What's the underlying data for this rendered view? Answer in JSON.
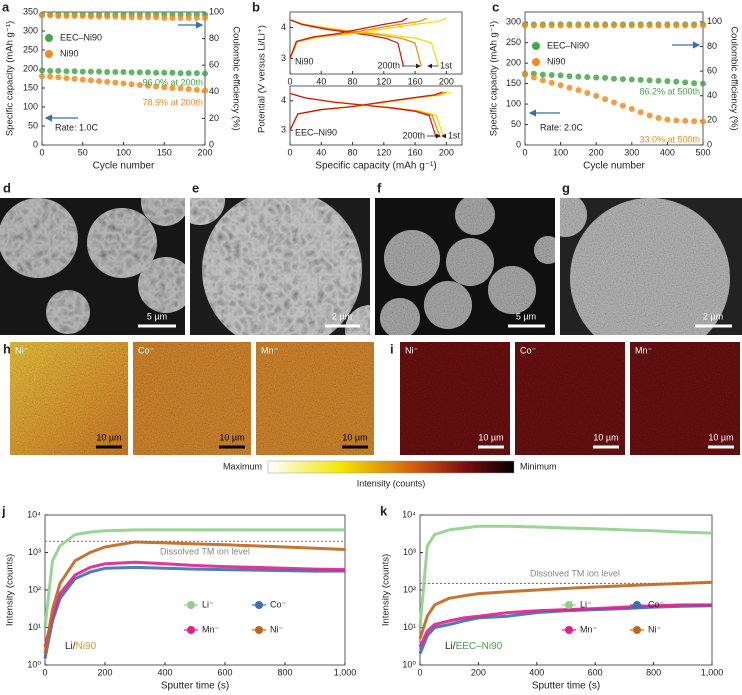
{
  "chart_data": [
    {
      "type": "line",
      "panel": "a",
      "marker": "circle",
      "xlabel": "Cycle number",
      "ylabel": "Specific capacity (mAh g⁻¹)",
      "y2label": "Coulombic efficiency (%)",
      "xlim": [
        0,
        200
      ],
      "xticks": [
        0,
        50,
        100,
        150,
        200
      ],
      "ylim": [
        0,
        350
      ],
      "yticks": [
        0,
        50,
        100,
        150,
        200,
        250,
        300,
        350
      ],
      "y2lim": [
        0,
        100
      ],
      "y2ticks": [
        0,
        20,
        40,
        60,
        80,
        100
      ],
      "x": [
        0,
        10,
        20,
        30,
        40,
        50,
        60,
        70,
        80,
        90,
        100,
        110,
        120,
        130,
        140,
        150,
        160,
        170,
        180,
        190,
        200
      ],
      "series": [
        {
          "name": "EEC–Ni90",
          "color": "#46a64a",
          "values": [
            196,
            195,
            195,
            194,
            194,
            193,
            193,
            193,
            192,
            192,
            192,
            191,
            191,
            191,
            190,
            190,
            190,
            189,
            189,
            189,
            188
          ]
        },
        {
          "name": "Ni90",
          "color": "#f08c1e",
          "values": [
            181,
            180,
            178,
            176,
            174,
            172,
            170,
            168,
            166,
            164,
            162,
            160,
            158,
            156,
            154,
            152,
            150,
            149,
            147,
            145,
            143
          ]
        },
        {
          "color": "#46a64a",
          "axis": "y2",
          "values": [
            98,
            98,
            98,
            98,
            98,
            98,
            98,
            98,
            98,
            98,
            98,
            98,
            98,
            98,
            98,
            98,
            98,
            98,
            98,
            98,
            98
          ]
        },
        {
          "color": "#f08c1e",
          "axis": "y2",
          "values": [
            97.5,
            97.5,
            97,
            97,
            97,
            97,
            96.5,
            96.5,
            96.5,
            96.5,
            96,
            96,
            96,
            96,
            96,
            95.5,
            95.5,
            95.5,
            95.5,
            95.5,
            95.5
          ]
        }
      ],
      "annotations": [
        {
          "text": "96.0% at 200th",
          "color": "#46a64a"
        },
        {
          "text": "78.9% at 200th",
          "color": "#f08c1e"
        },
        {
          "text": "Rate: 1.0C",
          "color": "#222222"
        }
      ]
    },
    {
      "type": "line",
      "panel": "b",
      "label": "Ni90",
      "ylabel": "Potential (V versus Li/Li⁺)",
      "xlim": [
        0,
        220
      ],
      "xticks": [
        0,
        40,
        80,
        120,
        160,
        200
      ],
      "ylim": [
        2.5,
        4.5
      ],
      "yticks": [
        3,
        4
      ],
      "series": [
        {
          "color": "#f0dc00",
          "x": [
            0,
            19,
            57,
            95,
            133,
            162,
            181,
            190
          ],
          "values": [
            4.25,
            4.1,
            3.95,
            3.85,
            3.75,
            3.65,
            3.5,
            2.75
          ]
        },
        {
          "color": "#f08c00",
          "x": [
            0,
            17,
            50,
            84,
            118,
            143,
            160,
            168
          ],
          "values": [
            4.25,
            4.1,
            3.95,
            3.85,
            3.75,
            3.65,
            3.5,
            2.75
          ]
        },
        {
          "color": "#d01010",
          "x": [
            0,
            15,
            44,
            73,
            102,
            123,
            138,
            145
          ],
          "values": [
            4.25,
            4.1,
            3.95,
            3.85,
            3.75,
            3.65,
            3.5,
            2.75
          ]
        },
        {
          "color": "#f0dc00",
          "x": [
            0,
            10,
            40,
            80,
            120,
            160,
            190,
            200
          ],
          "values": [
            3.0,
            3.55,
            3.7,
            3.8,
            3.95,
            4.1,
            4.2,
            4.3
          ]
        },
        {
          "color": "#f08c00",
          "x": [
            0,
            9,
            35,
            70,
            105,
            140,
            166,
            175
          ],
          "values": [
            3.0,
            3.55,
            3.7,
            3.8,
            3.95,
            4.1,
            4.2,
            4.3
          ]
        },
        {
          "color": "#d01010",
          "x": [
            0,
            8,
            30,
            60,
            90,
            120,
            143,
            150
          ],
          "values": [
            3.0,
            3.55,
            3.7,
            3.8,
            3.95,
            4.1,
            4.2,
            4.3
          ]
        }
      ],
      "annotations": [
        {
          "text": "200th",
          "color": "#222222"
        },
        {
          "text": "1st",
          "color": "#222222"
        }
      ]
    },
    {
      "type": "line",
      "label": "EEC–Ni90",
      "xlabel": "Specific capacity (mAh g⁻¹)",
      "xlim": [
        0,
        220
      ],
      "xticks": [
        0,
        40,
        80,
        120,
        160,
        200
      ],
      "ylim": [
        2.5,
        4.5
      ],
      "yticks": [
        3,
        4
      ],
      "series": [
        {
          "color": "#f0dc00",
          "x": [
            0,
            20,
            59,
            99,
            138,
            167,
            187,
            197
          ],
          "values": [
            4.25,
            4.1,
            3.95,
            3.85,
            3.75,
            3.65,
            3.5,
            2.75
          ]
        },
        {
          "color": "#f08c00",
          "x": [
            0,
            19,
            58,
            96,
            134,
            163,
            182,
            192
          ],
          "values": [
            4.25,
            4.1,
            3.95,
            3.85,
            3.75,
            3.65,
            3.5,
            2.75
          ]
        },
        {
          "color": "#d01010",
          "x": [
            0,
            19,
            56,
            94,
            131,
            159,
            178,
            187
          ],
          "values": [
            4.25,
            4.1,
            3.95,
            3.85,
            3.75,
            3.65,
            3.5,
            2.75
          ]
        },
        {
          "color": "#f0dc00",
          "x": [
            0,
            10,
            41,
            82,
            123,
            164,
            195,
            205
          ],
          "values": [
            3.0,
            3.55,
            3.7,
            3.8,
            3.95,
            4.1,
            4.2,
            4.3
          ]
        },
        {
          "color": "#f08c00",
          "x": [
            0,
            10,
            40,
            80,
            120,
            160,
            190,
            200
          ],
          "values": [
            3.0,
            3.55,
            3.7,
            3.8,
            3.95,
            4.1,
            4.2,
            4.3
          ]
        },
        {
          "color": "#d01010",
          "x": [
            0,
            10,
            39,
            78,
            117,
            156,
            185,
            195
          ],
          "values": [
            3.0,
            3.55,
            3.7,
            3.8,
            3.95,
            4.1,
            4.2,
            4.3
          ]
        }
      ],
      "annotations": [
        {
          "text": "200th",
          "color": "#222222"
        },
        {
          "text": "1st",
          "color": "#222222"
        }
      ]
    },
    {
      "type": "line",
      "panel": "c",
      "marker": "circle",
      "xlabel": "Cycle number",
      "ylabel": "Specific capacity (mAh g⁻¹)",
      "y2label": "Coulombic efficiency (%)",
      "xlim": [
        0,
        500
      ],
      "xticks": [
        0,
        100,
        200,
        300,
        400,
        500
      ],
      "ylim": [
        0,
        325
      ],
      "yticks": [
        0,
        50,
        100,
        150,
        200,
        250,
        300
      ],
      "y2lim": [
        0,
        108
      ],
      "y2ticks": [
        0,
        20,
        40,
        60,
        80,
        100
      ],
      "x": [
        0,
        25,
        50,
        75,
        100,
        125,
        150,
        175,
        200,
        225,
        250,
        275,
        300,
        325,
        350,
        375,
        400,
        425,
        450,
        475,
        500
      ],
      "series": [
        {
          "name": "EEC–Ni90",
          "color": "#46a64a",
          "values": [
            174,
            174,
            172,
            171,
            170,
            168,
            167,
            166,
            165,
            164,
            162,
            161,
            160,
            159,
            158,
            157,
            156,
            155,
            153,
            151,
            150
          ]
        },
        {
          "name": "Ni90",
          "color": "#f08c1e",
          "values": [
            172,
            165,
            158,
            152,
            146,
            140,
            134,
            127,
            120,
            112,
            104,
            96,
            88,
            80,
            72,
            66,
            62,
            60,
            59,
            58,
            57
          ]
        },
        {
          "color": "#46a64a",
          "axis": "y2",
          "values": [
            98,
            98,
            98,
            98,
            98,
            98,
            98,
            98,
            98,
            98,
            98,
            98,
            98,
            98,
            98,
            98,
            98,
            98,
            98,
            98,
            98
          ]
        },
        {
          "color": "#f08c1e",
          "axis": "y2",
          "values": [
            97,
            97,
            97,
            97,
            97,
            97,
            97,
            97,
            97,
            97,
            97,
            97,
            97,
            97,
            97,
            97,
            97,
            97,
            97,
            97,
            97
          ]
        }
      ],
      "annotations": [
        {
          "text": "86.2% at 500th",
          "color": "#46a64a"
        },
        {
          "text": "33.0% at 500th",
          "color": "#f08c1e"
        },
        {
          "text": "Rate: 2.0C",
          "color": "#222222"
        }
      ]
    },
    {
      "type": "line",
      "panel": "j",
      "log_y": true,
      "xlabel": "Sputter time (s)",
      "ylabel": "Intensity (counts)",
      "xlim": [
        0,
        1000
      ],
      "xticks": [
        0,
        200,
        400,
        600,
        800,
        {
          "value": 1000,
          "label": "1,000"
        }
      ],
      "ylim": [
        1,
        10000
      ],
      "yticks": [
        {
          "value": 1,
          "label": "10⁰"
        },
        {
          "value": 10,
          "label": "10¹"
        },
        {
          "value": 100,
          "label": "10²"
        },
        {
          "value": 1000,
          "label": "10³"
        },
        {
          "value": 10000,
          "label": "10⁴"
        }
      ],
      "x": [
        0,
        25,
        50,
        100,
        150,
        200,
        300,
        400,
        500,
        600,
        700,
        800,
        900,
        1000
      ],
      "reference_level": 2000,
      "series": [
        {
          "name": "Li⁻",
          "color": "#8ed08a",
          "values": [
            10,
            600,
            1500,
            3000,
            3500,
            3800,
            4000,
            4000,
            4000,
            4000,
            4000,
            4000,
            4000,
            4000
          ]
        },
        {
          "name": "Co⁻",
          "color": "#3c6fb5",
          "values": [
            1.5,
            15,
            60,
            200,
            300,
            380,
            400,
            380,
            360,
            350,
            340,
            330,
            320,
            320
          ]
        },
        {
          "name": "Mn⁻",
          "color": "#e0208c",
          "values": [
            3,
            20,
            80,
            250,
            400,
            500,
            550,
            500,
            450,
            420,
            400,
            380,
            360,
            350
          ]
        },
        {
          "name": "Ni⁻",
          "color": "#c0651e",
          "values": [
            2,
            30,
            150,
            600,
            1000,
            1400,
            1900,
            1800,
            1700,
            1600,
            1500,
            1400,
            1300,
            1200
          ]
        }
      ],
      "annotations": [
        {
          "text": "Dissolved TM ion level",
          "color": "#888888"
        }
      ],
      "sample": {
        "prefix": "Li/",
        "name": "Ni90",
        "color": "#f08c1e"
      }
    },
    {
      "type": "line",
      "panel": "k",
      "log_y": true,
      "xlabel": "Sputter time (s)",
      "ylabel": "Intensity (counts)",
      "xlim": [
        0,
        1000
      ],
      "xticks": [
        0,
        200,
        400,
        600,
        800,
        {
          "value": 1000,
          "label": "1,000"
        }
      ],
      "ylim": [
        1,
        10000
      ],
      "yticks": [
        {
          "value": 1,
          "label": "10⁰"
        },
        {
          "value": 10,
          "label": "10¹"
        },
        {
          "value": 100,
          "label": "10²"
        },
        {
          "value": 1000,
          "label": "10³"
        },
        {
          "value": 10000,
          "label": "10⁴"
        }
      ],
      "x": [
        0,
        25,
        50,
        100,
        150,
        200,
        300,
        400,
        500,
        600,
        700,
        800,
        900,
        1000
      ],
      "reference_level": 150,
      "series": [
        {
          "name": "Li⁻",
          "color": "#8ed08a",
          "values": [
            10,
            1500,
            3000,
            4000,
            4500,
            5000,
            5000,
            4800,
            4500,
            4300,
            4000,
            3800,
            3500,
            3300
          ]
        },
        {
          "name": "Co⁻",
          "color": "#3c6fb5",
          "values": [
            2,
            6,
            10,
            12,
            15,
            18,
            20,
            25,
            28,
            30,
            32,
            35,
            37,
            38
          ]
        },
        {
          "name": "Mn⁻",
          "color": "#e0208c",
          "values": [
            3,
            8,
            12,
            15,
            18,
            20,
            25,
            28,
            30,
            32,
            35,
            38,
            40,
            40
          ]
        },
        {
          "name": "Ni⁻",
          "color": "#c0651e",
          "values": [
            5,
            20,
            40,
            60,
            70,
            80,
            90,
            100,
            110,
            120,
            130,
            140,
            150,
            160
          ]
        }
      ],
      "annotations": [
        {
          "text": "Dissolved TM ion level",
          "color": "#888888"
        }
      ],
      "sample": {
        "prefix": "Li/",
        "name": "EEC–Ni90",
        "color": "#46a64a"
      }
    }
  ],
  "micrographs": [
    {
      "panel": "d",
      "scale_bar": "5 µm"
    },
    {
      "panel": "e",
      "scale_bar": "2 µm"
    },
    {
      "panel": "f",
      "scale_bar": "5 µm"
    },
    {
      "panel": "g",
      "scale_bar": "2 µm"
    }
  ],
  "maps": [
    {
      "panel": "h",
      "channels": [
        "Ni⁻",
        "Co⁻",
        "Mn⁻"
      ],
      "scale_bar": "10 µm"
    },
    {
      "panel": "i",
      "channels": [
        "Ni⁻",
        "Co⁻",
        "Mn⁻"
      ],
      "scale_bar": "10 µm"
    }
  ],
  "colorbar": {
    "max": "Maximum",
    "min": "Minimum",
    "title": "Intensity (counts)"
  }
}
